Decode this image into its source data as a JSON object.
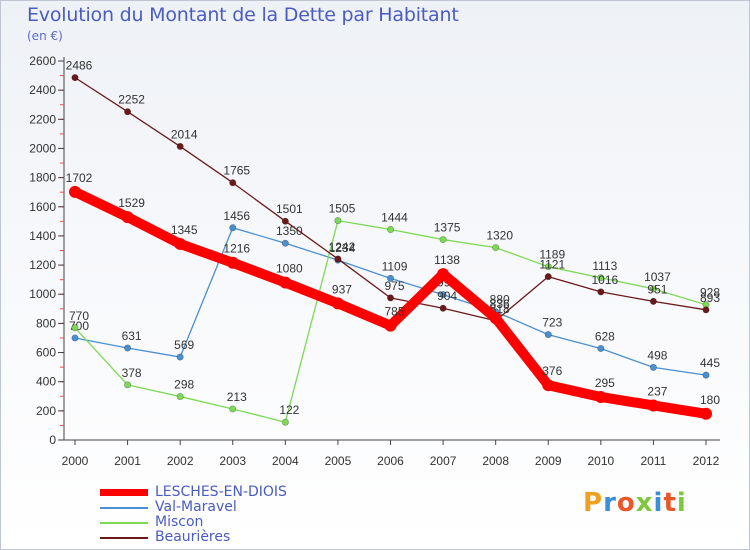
{
  "title": "Evolution du Montant de la Dette par Habitant",
  "subtitle": "(en €)",
  "logo_text": "Proxiti",
  "chart_data": {
    "type": "line",
    "categories": [
      "2000",
      "2001",
      "2002",
      "2003",
      "2004",
      "2005",
      "2006",
      "2007",
      "2008",
      "2009",
      "2010",
      "2011",
      "2012"
    ],
    "ylim": [
      0,
      2600
    ],
    "yticks": [
      0,
      200,
      400,
      600,
      800,
      1000,
      1200,
      1400,
      1600,
      1800,
      2000,
      2200,
      2400,
      2600
    ],
    "grid": false,
    "legend_position": "bottom-left",
    "series": [
      {
        "name": "LESCHES-EN-DIOIS",
        "color": "#ff0000",
        "values": [
          1702,
          1529,
          1345,
          1216,
          1080,
          937,
          785,
          1138,
          836,
          376,
          295,
          237,
          180
        ]
      },
      {
        "name": "Val-Maravel",
        "color": "#4a90d0",
        "values": [
          700,
          631,
          569,
          1456,
          1350,
          1234,
          1109,
          997,
          880,
          723,
          628,
          498,
          445
        ]
      },
      {
        "name": "Miscon",
        "color": "#7ed957",
        "values": [
          770,
          378,
          298,
          213,
          122,
          1505,
          1444,
          1375,
          1320,
          1189,
          1113,
          1037,
          928
        ]
      },
      {
        "name": "Beaurières",
        "color": "#6b1a1a",
        "values": [
          2486,
          2252,
          2014,
          1765,
          1501,
          1242,
          975,
          904,
          818,
          1121,
          1016,
          951,
          893
        ]
      }
    ]
  }
}
